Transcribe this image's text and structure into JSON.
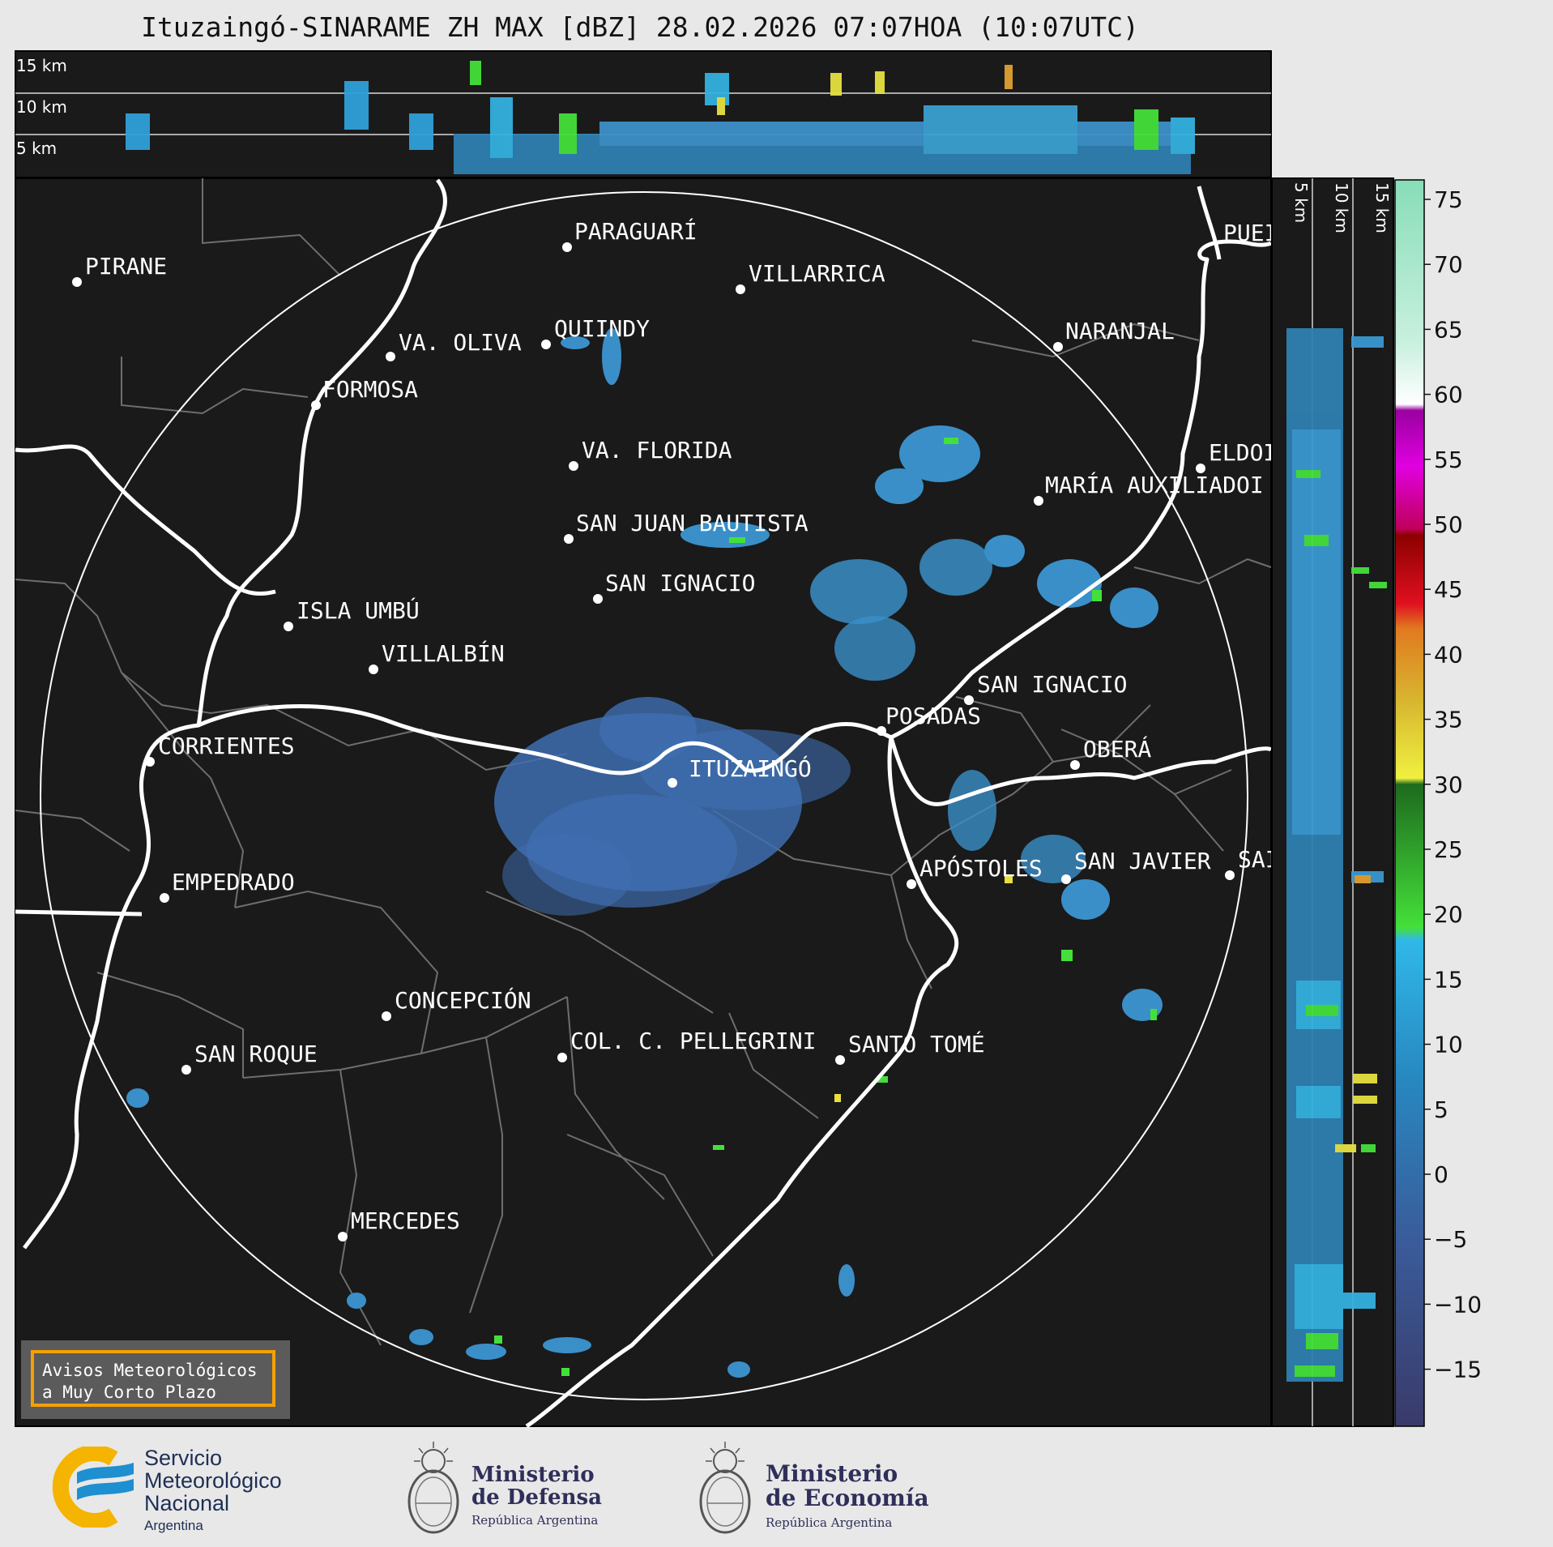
{
  "header": {
    "title": "Ituzaingó-SINARAME ZH MAX [dBZ] 28.02.2026 07:07HOA (10:07UTC)"
  },
  "altitude_labels": {
    "top": [
      "15 km",
      "10 km",
      "5 km"
    ],
    "side": [
      "5 km",
      "10 km",
      "15 km"
    ]
  },
  "colorbar": {
    "ticks": [
      "75",
      "70",
      "65",
      "60",
      "55",
      "50",
      "45",
      "40",
      "35",
      "30",
      "25",
      "20",
      "15",
      "10",
      "5",
      "0",
      "−5",
      "−10",
      "−15"
    ]
  },
  "places": [
    {
      "name": "PIRANE"
    },
    {
      "name": "PARAGUARÍ"
    },
    {
      "name": "VILLARRICA"
    },
    {
      "name": "QUIINDY"
    },
    {
      "name": "VA. OLIVA"
    },
    {
      "name": "NARANJAL"
    },
    {
      "name": "FORMOSA"
    },
    {
      "name": "PUEI"
    },
    {
      "name": "VA. FLORIDA"
    },
    {
      "name": "ELDOI"
    },
    {
      "name": "MARÍA AUXILIADOI"
    },
    {
      "name": "SAN JUAN BAUTISTA"
    },
    {
      "name": "SAN IGNACIO"
    },
    {
      "name": "ISLA UMBÚ"
    },
    {
      "name": "VILLALBÍN"
    },
    {
      "name": "SAN IGNACIO"
    },
    {
      "name": "POSADAS"
    },
    {
      "name": "CORRIENTES"
    },
    {
      "name": "ITUZAINGÓ"
    },
    {
      "name": "OBERÁ"
    },
    {
      "name": "APÓSTOLES"
    },
    {
      "name": "SAN JAVIER"
    },
    {
      "name": "SAI"
    },
    {
      "name": "EMPEDRADO"
    },
    {
      "name": "CONCEPCIÓN"
    },
    {
      "name": "COL. C. PELLEGRINI"
    },
    {
      "name": "SANTO TOMÉ"
    },
    {
      "name": "SAN ROQUE"
    },
    {
      "name": "MERCEDES"
    }
  ],
  "notice": {
    "line1": "Avisos Meteorológicos",
    "line2": "a Muy Corto Plazo"
  },
  "logos": {
    "smn": {
      "line1": "Servicio",
      "line2": "Meteorológico",
      "line3": "Nacional",
      "line4": "Argentina"
    },
    "defensa": {
      "line1": "Ministerio",
      "line2": "de Defensa",
      "line3": "República Argentina"
    },
    "economia": {
      "line1": "Ministerio",
      "line2": "de Economía",
      "line3": "República Argentina"
    }
  },
  "colors": {
    "background": "#e8e8e8",
    "map_bg": "#1a1a1a",
    "notice_border": "#f5a000",
    "smn_yellow": "#f5b400",
    "smn_blue": "#1e8fd0"
  }
}
